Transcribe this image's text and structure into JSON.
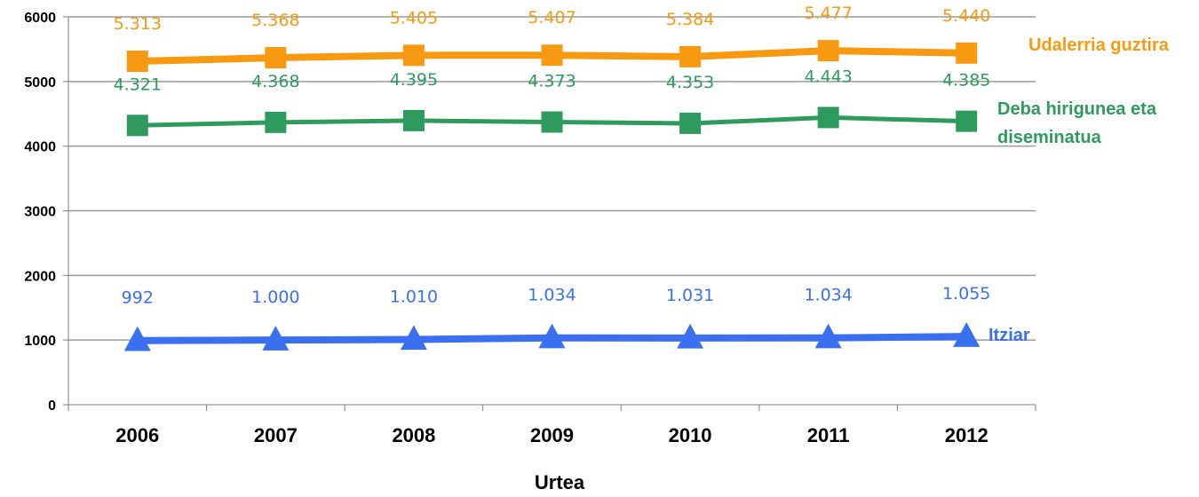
{
  "chart_data": {
    "type": "line",
    "title": "",
    "xlabel": "Urtea",
    "ylabel": "",
    "ylim": [
      0,
      6000
    ],
    "y_ticks": [
      "0",
      "1000",
      "2000",
      "3000",
      "4000",
      "5000",
      "6000"
    ],
    "grid": "horizontal",
    "categories": [
      "2006",
      "2007",
      "2008",
      "2009",
      "2010",
      "2011",
      "2012"
    ],
    "series": [
      {
        "name": "Udalerria guztira",
        "color": "#f79a12",
        "marker": "square",
        "values": [
          5313,
          5368,
          5405,
          5407,
          5384,
          5477,
          5440
        ],
        "labels": [
          "5.313",
          "5.368",
          "5.405",
          "5.407",
          "5.384",
          "5.477",
          "5.440"
        ]
      },
      {
        "name": "Deba hirigunea eta diseminatua",
        "name_lines": [
          "Deba hirigunea eta",
          "diseminatua"
        ],
        "color": "#2e9a5e",
        "marker": "square",
        "values": [
          4321,
          4368,
          4395,
          4373,
          4353,
          4443,
          4385
        ],
        "labels": [
          "4.321",
          "4.368",
          "4.395",
          "4.373",
          "4.353",
          "4.443",
          "4.385"
        ]
      },
      {
        "name": "Itziar",
        "color": "#3a6ff0",
        "marker": "triangle",
        "values": [
          992,
          1000,
          1010,
          1034,
          1031,
          1034,
          1055
        ],
        "labels": [
          "992",
          "1.000",
          "1.010",
          "1.034",
          "1.031",
          "1.034",
          "1.055"
        ]
      }
    ]
  }
}
